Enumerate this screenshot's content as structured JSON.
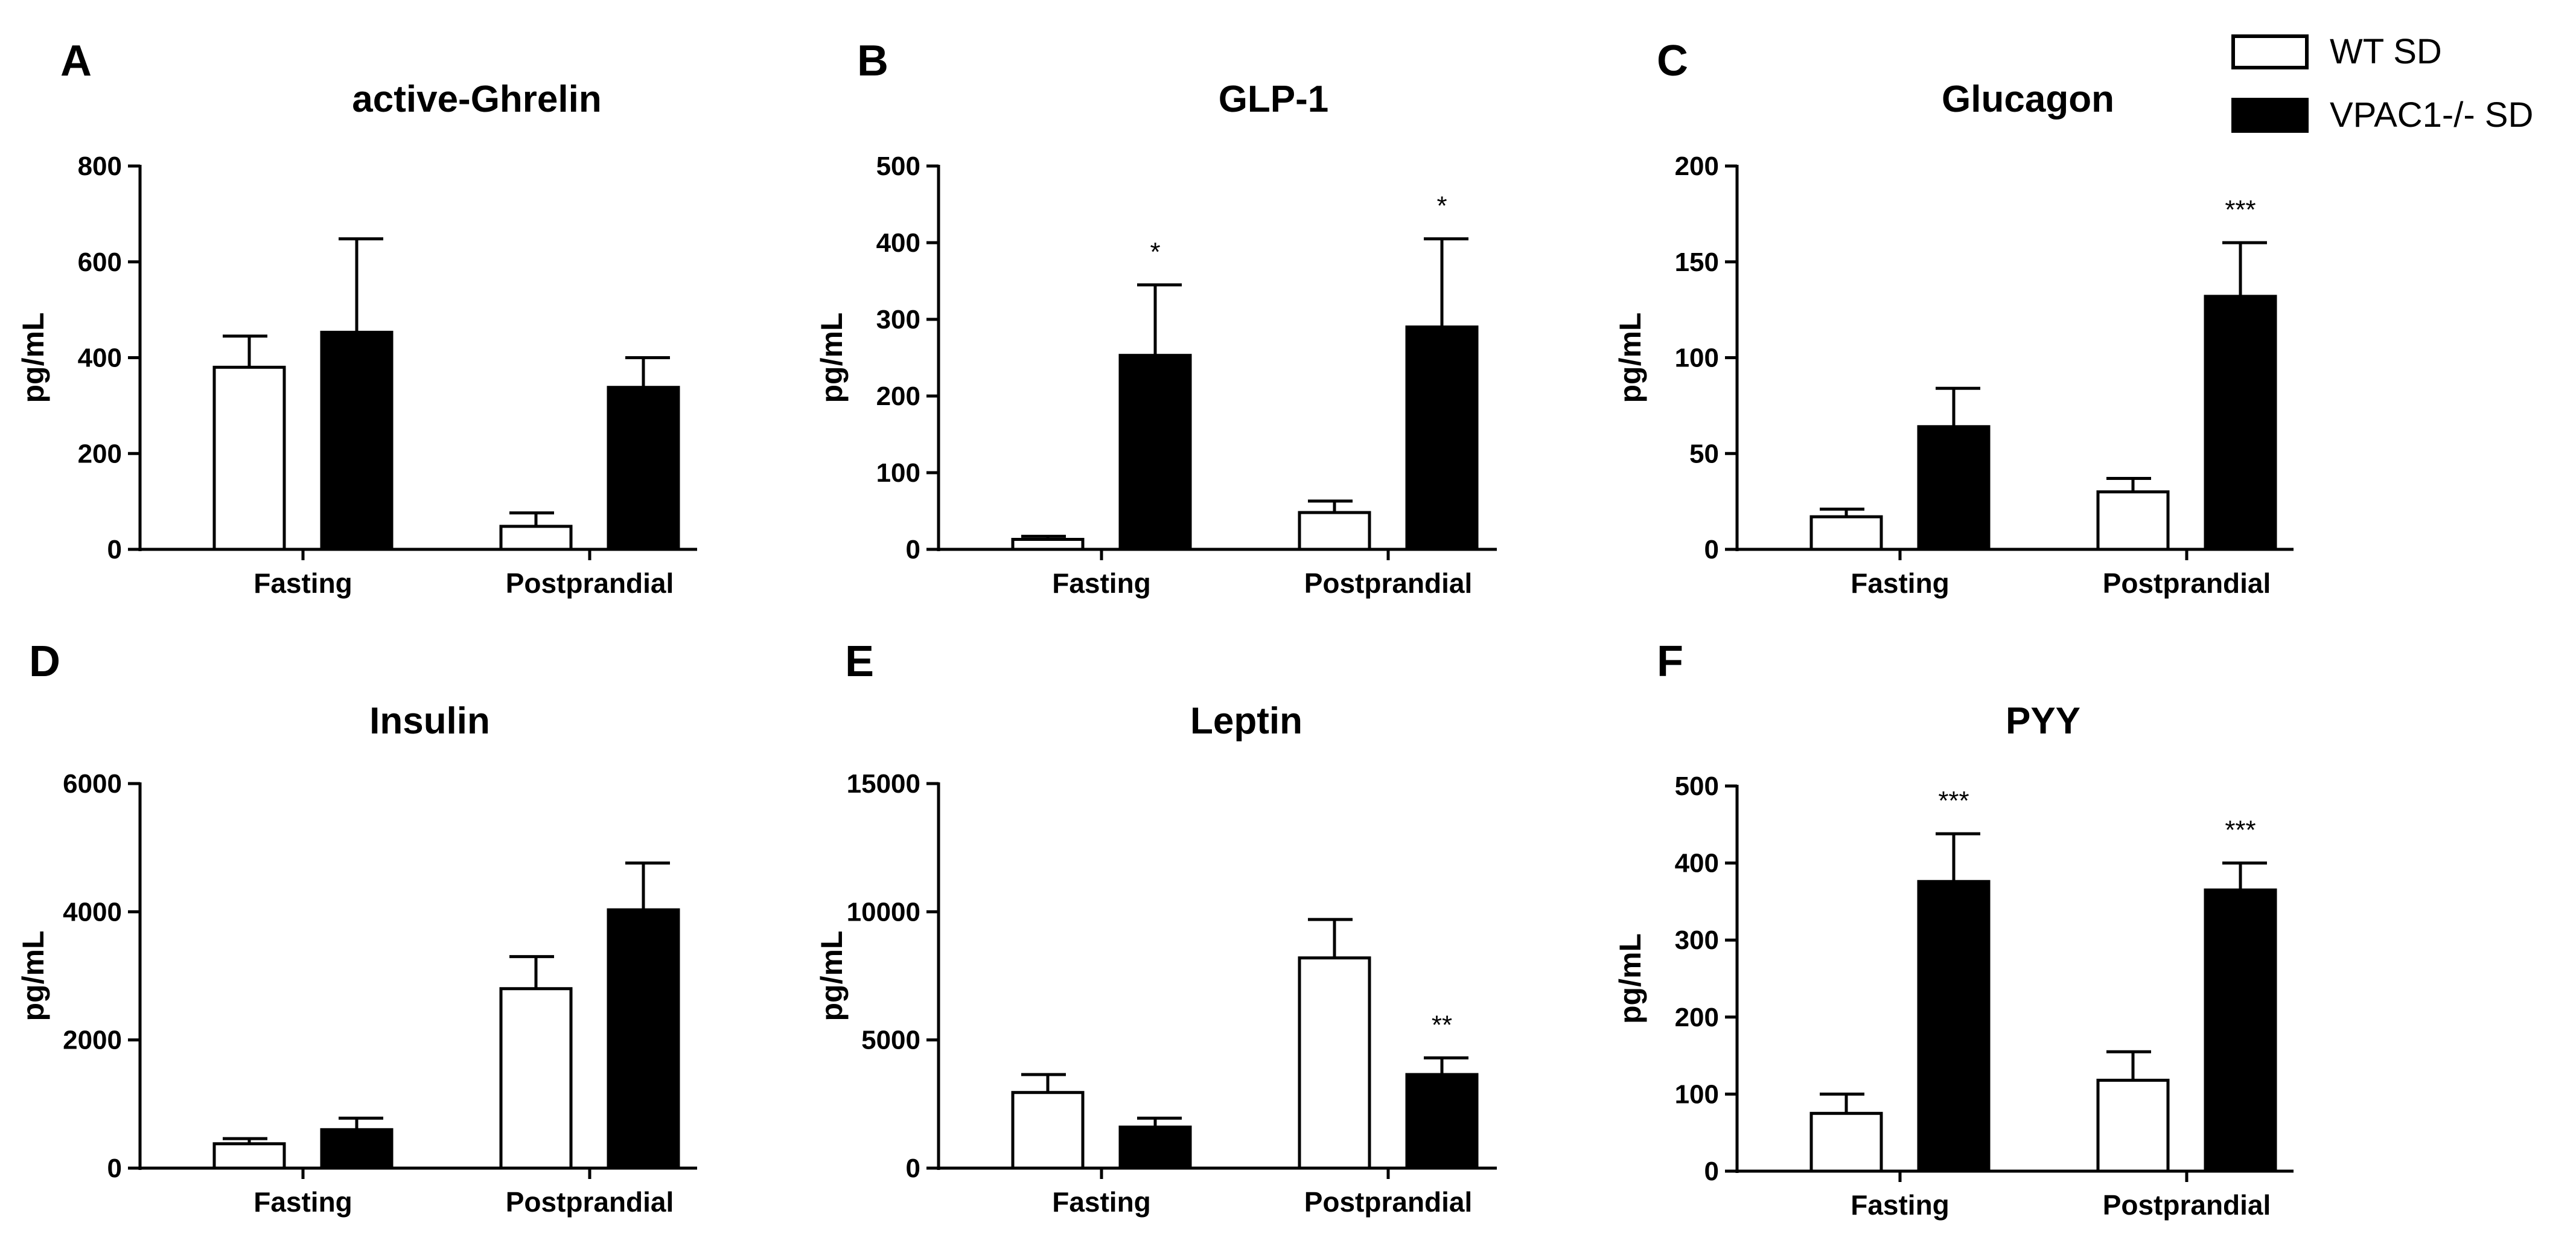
{
  "figure": {
    "legend": [
      {
        "label": "WT SD",
        "fill": "#ffffff",
        "stroke": "#000000"
      },
      {
        "label": "VPAC1-/- SD",
        "fill": "#000000",
        "stroke": "#000000"
      }
    ]
  },
  "chart_data": [
    {
      "type": "bar",
      "panel": "A",
      "title": "active-Ghrelin",
      "ylabel": "pg/mL",
      "ylim": [
        0,
        800
      ],
      "yticks": [
        0,
        200,
        400,
        600,
        800
      ],
      "ytick_labels": [
        "0",
        "200",
        "400",
        "600",
        "800"
      ],
      "categories": [
        "Fasting",
        "Postprandial"
      ],
      "series": [
        {
          "name": "WT SD",
          "values": [
            380,
            48
          ],
          "errors": [
            65,
            28
          ],
          "sig": [
            "",
            ""
          ]
        },
        {
          "name": "VPAC1-/- SD",
          "values": [
            453,
            338
          ],
          "errors": [
            195,
            62
          ],
          "sig": [
            "",
            ""
          ]
        }
      ]
    },
    {
      "type": "bar",
      "panel": "B",
      "title": "GLP-1",
      "ylabel": "pg/mL",
      "ylim": [
        0,
        500
      ],
      "yticks": [
        0,
        100,
        200,
        300,
        400,
        500
      ],
      "ytick_labels": [
        "0",
        "100",
        "200",
        "300",
        "400",
        "500"
      ],
      "categories": [
        "Fasting",
        "Postprandial"
      ],
      "series": [
        {
          "name": "WT SD",
          "values": [
            13,
            48
          ],
          "errors": [
            4,
            15
          ],
          "sig": [
            "",
            ""
          ]
        },
        {
          "name": "VPAC1-/- SD",
          "values": [
            253,
            290
          ],
          "errors": [
            92,
            115
          ],
          "sig": [
            "*",
            "*"
          ]
        }
      ]
    },
    {
      "type": "bar",
      "panel": "C",
      "title": "Glucagon",
      "ylabel": "pg/mL",
      "ylim": [
        0,
        200
      ],
      "yticks": [
        0,
        50,
        100,
        150,
        200
      ],
      "ytick_labels": [
        "0",
        "50",
        "100",
        "150",
        "200"
      ],
      "categories": [
        "Fasting",
        "Postprandial"
      ],
      "series": [
        {
          "name": "WT SD",
          "values": [
            17,
            30
          ],
          "errors": [
            4,
            7
          ],
          "sig": [
            "",
            ""
          ]
        },
        {
          "name": "VPAC1-/- SD",
          "values": [
            64,
            132
          ],
          "errors": [
            20,
            28
          ],
          "sig": [
            "",
            "***"
          ]
        }
      ]
    },
    {
      "type": "bar",
      "panel": "D",
      "title": "Insulin",
      "ylabel": "pg/mL",
      "ylim": [
        0,
        6000
      ],
      "yticks": [
        0,
        2000,
        4000,
        6000
      ],
      "ytick_labels": [
        "0",
        "2000",
        "4000",
        "6000"
      ],
      "categories": [
        "Fasting",
        "Postprandial"
      ],
      "series": [
        {
          "name": "WT SD",
          "values": [
            380,
            2800
          ],
          "errors": [
            80,
            500
          ],
          "sig": [
            "",
            ""
          ]
        },
        {
          "name": "VPAC1-/- SD",
          "values": [
            600,
            4030
          ],
          "errors": [
            180,
            730
          ],
          "sig": [
            "",
            ""
          ]
        }
      ]
    },
    {
      "type": "bar",
      "panel": "E",
      "title": "Leptin",
      "ylabel": "pg/mL",
      "ylim": [
        0,
        15000
      ],
      "yticks": [
        0,
        5000,
        10000,
        15000
      ],
      "ytick_labels": [
        "0",
        "5000",
        "10000",
        "15000"
      ],
      "categories": [
        "Fasting",
        "Postprandial"
      ],
      "series": [
        {
          "name": "WT SD",
          "values": [
            2950,
            8200
          ],
          "errors": [
            700,
            1500
          ],
          "sig": [
            "",
            ""
          ]
        },
        {
          "name": "VPAC1-/- SD",
          "values": [
            1600,
            3650
          ],
          "errors": [
            350,
            650
          ],
          "sig": [
            "",
            "**"
          ]
        }
      ]
    },
    {
      "type": "bar",
      "panel": "F",
      "title": "PYY",
      "ylabel": "pg/mL",
      "ylim": [
        0,
        500
      ],
      "yticks": [
        0,
        100,
        200,
        300,
        400,
        500
      ],
      "ytick_labels": [
        "0",
        "100",
        "200",
        "300",
        "400",
        "500"
      ],
      "categories": [
        "Fasting",
        "Postprandial"
      ],
      "series": [
        {
          "name": "WT SD",
          "values": [
            75,
            118
          ],
          "errors": [
            25,
            37
          ],
          "sig": [
            "",
            ""
          ]
        },
        {
          "name": "VPAC1-/- SD",
          "values": [
            376,
            365
          ],
          "errors": [
            62,
            35
          ],
          "sig": [
            "***",
            "***"
          ]
        }
      ]
    }
  ]
}
